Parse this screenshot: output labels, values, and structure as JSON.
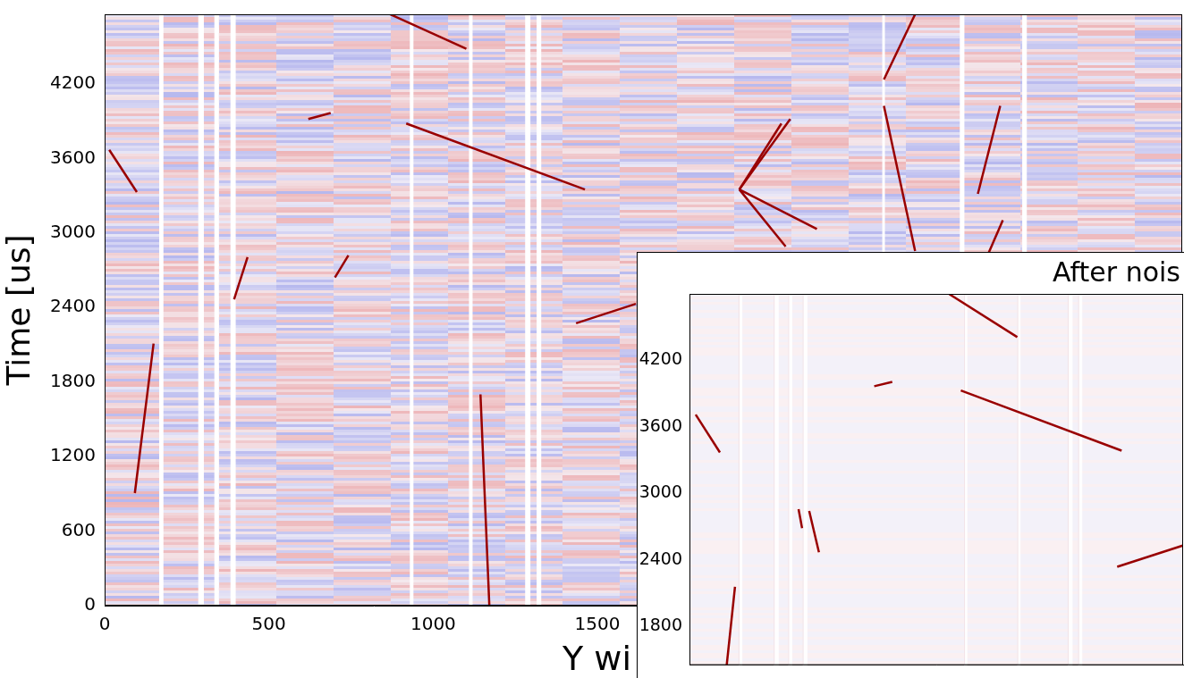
{
  "chart_data": [
    {
      "type": "scatter",
      "x_label": "Y wi",
      "y_label": "Time [us]",
      "xlim": [
        0,
        3280
      ],
      "xticks": [
        0,
        500,
        1000,
        1500
      ],
      "ylim": [
        0,
        4760
      ],
      "yticks": [
        0,
        600,
        1200,
        1800,
        2400,
        3000,
        3600,
        4200
      ],
      "grid": false,
      "color": "#990000",
      "tracks": [
        [
          14,
          3669,
          98,
          3329
        ],
        [
          92,
          906,
          149,
          2110
        ],
        [
          701,
          2642,
          742,
          2819
        ],
        [
          394,
          2465,
          435,
          2805
        ],
        [
          864,
          4766,
          1101,
          4483
        ],
        [
          620,
          3917,
          688,
          3966
        ],
        [
          918,
          3881,
          1462,
          3350
        ],
        [
          1144,
          1700,
          1171,
          0
        ],
        [
          1435,
          2273,
          1617,
          2429
        ],
        [
          1932,
          3350,
          2087,
          3917
        ],
        [
          1932,
          3350,
          2060,
          3881
        ],
        [
          1932,
          3350,
          2168,
          3031
        ],
        [
          1932,
          3350,
          2073,
          2890
        ],
        [
          2467,
          4760,
          2372,
          4235
        ],
        [
          2372,
          4023,
          2467,
          2854
        ],
        [
          2726,
          4023,
          2658,
          3315
        ],
        [
          2734,
          3102,
          2685,
          2805
        ]
      ],
      "dead_wires": [
        [
          166,
          179
        ],
        [
          285,
          302
        ],
        [
          334,
          348
        ],
        [
          383,
          399
        ],
        [
          929,
          940
        ],
        [
          1109,
          1120
        ],
        [
          1280,
          1296
        ],
        [
          1315,
          1329
        ],
        [
          2367,
          2375
        ],
        [
          2603,
          2617
        ],
        [
          2793,
          2807
        ]
      ]
    },
    {
      "type": "scatter",
      "title": "After nois",
      "xlim": [
        0,
        1670
      ],
      "ylim": [
        1450,
        4800
      ],
      "yticks": [
        1800,
        2400,
        3000,
        3600,
        4200
      ],
      "tick_labels": "y",
      "grid": false,
      "color": "#990000",
      "tracks": [
        [
          879,
          4798,
          1109,
          4410
        ],
        [
          625,
          3967,
          686,
          4006
        ],
        [
          918,
          3928,
          1462,
          3385
        ],
        [
          21,
          3711,
          103,
          3369
        ],
        [
          369,
          2857,
          381,
          2686
        ],
        [
          405,
          2841,
          438,
          2469
        ],
        [
          154,
          2158,
          124,
          1400
        ],
        [
          1447,
          2337,
          1671,
          2531
        ]
      ],
      "dead_wires": [
        [
          166,
          179
        ],
        [
          285,
          302
        ],
        [
          334,
          348
        ],
        [
          383,
          399
        ],
        [
          929,
          940
        ],
        [
          1109,
          1120
        ],
        [
          1280,
          1296
        ],
        [
          1315,
          1329
        ]
      ]
    }
  ]
}
